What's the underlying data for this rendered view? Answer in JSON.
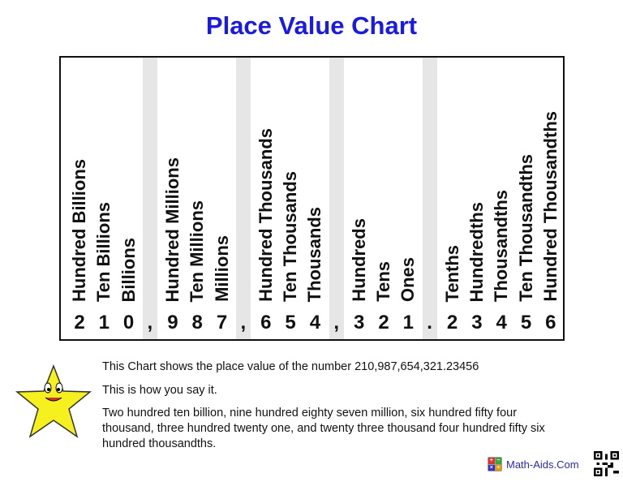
{
  "title": "Place Value Chart",
  "columns": [
    {
      "label": "Hundred Billions",
      "digit": "2"
    },
    {
      "label": "Ten Billions",
      "digit": "1"
    },
    {
      "label": "Billions",
      "digit": "0"
    },
    {
      "sep": true,
      "digit": ","
    },
    {
      "label": "Hundred Millions",
      "digit": "9"
    },
    {
      "label": "Ten Millions",
      "digit": "8"
    },
    {
      "label": "Millions",
      "digit": "7"
    },
    {
      "sep": true,
      "digit": ","
    },
    {
      "label": "Hundred Thousands",
      "digit": "6"
    },
    {
      "label": "Ten Thousands",
      "digit": "5"
    },
    {
      "label": "Thousands",
      "digit": "4"
    },
    {
      "sep": true,
      "digit": ","
    },
    {
      "label": "Hundreds",
      "digit": "3"
    },
    {
      "label": "Tens",
      "digit": "2"
    },
    {
      "label": "Ones",
      "digit": "1"
    },
    {
      "sep": true,
      "digit": "."
    },
    {
      "label": "Tenths",
      "digit": "2"
    },
    {
      "label": "Hundredths",
      "digit": "3"
    },
    {
      "label": "Thousandths",
      "digit": "4"
    },
    {
      "label": "Ten Thousandths",
      "digit": "5"
    },
    {
      "label": "Hundred Thousandths",
      "digit": "6"
    }
  ],
  "description": {
    "line1": "This Chart shows the place value of the number 210,987,654,321.23456",
    "line2": "This is how you say it.",
    "line3": "Two hundred ten billion, nine hundred eighty seven million, six hundred fifty four thousand, three hundred twenty one, and twenty three thousand four hundred fifty six hundred thousandths."
  },
  "footer": {
    "logo_text": "Math-Aids.Com",
    "calc_symbols": [
      "+",
      "−",
      "×",
      "÷"
    ]
  },
  "colors": {
    "title": "#1a1ae0",
    "separator": "#e6e6e6",
    "star": "#f5f01e"
  }
}
